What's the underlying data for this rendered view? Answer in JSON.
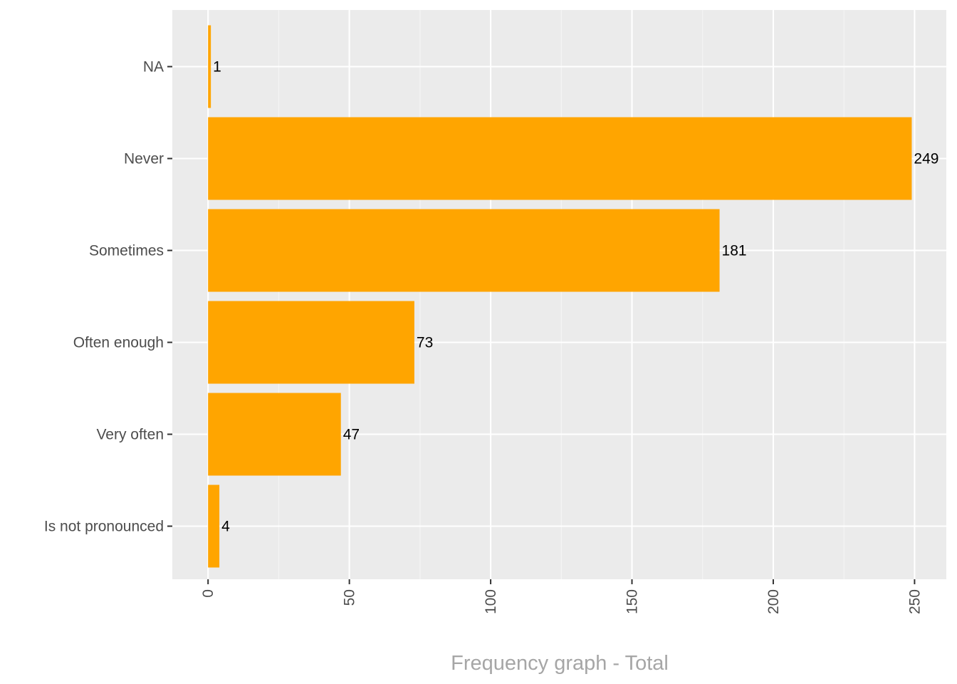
{
  "chart_data": {
    "type": "bar",
    "orientation": "horizontal",
    "categories": [
      "NA",
      "Never",
      "Sometimes",
      "Often enough",
      "Very often",
      "Is not pronounced"
    ],
    "values": [
      1,
      249,
      181,
      73,
      47,
      4
    ],
    "data_labels": [
      "1",
      "249",
      "181",
      "73",
      "47",
      "4"
    ],
    "x_ticks": [
      "0",
      "50",
      "100",
      "150",
      "200",
      "250"
    ],
    "x_tick_values": [
      0,
      50,
      100,
      150,
      200,
      250
    ],
    "xlabel": "Frequency graph - Total",
    "xlim": [
      -12.5,
      261.5
    ],
    "grid": true,
    "colors": {
      "bar": "#FFA500",
      "panel": "#EBEBEB",
      "grid_major": "#FFFFFF",
      "grid_minor": "#F5F5F5",
      "tick_label": "#4D4D4D",
      "data_label": "#000000",
      "axis_title": "#A6A6A6"
    }
  }
}
